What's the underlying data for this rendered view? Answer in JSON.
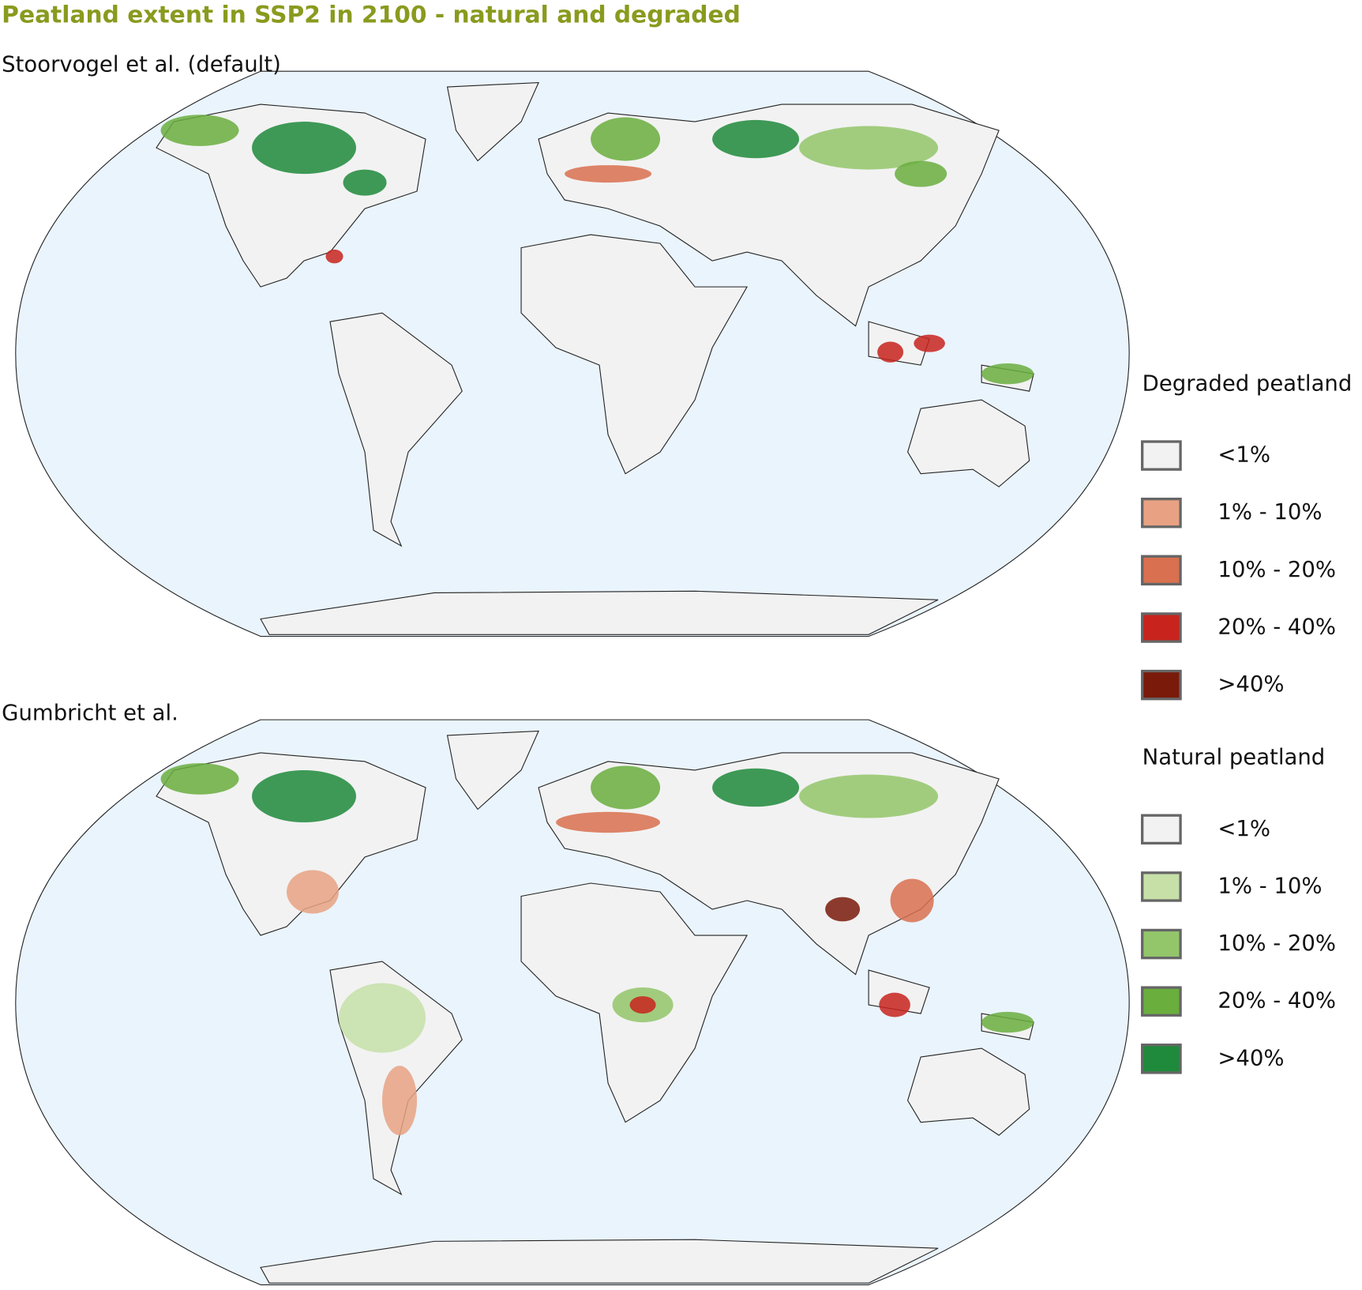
{
  "title": "Peatland extent in SSP2 in 2100 - natural and degraded",
  "maps": [
    {
      "subtitle": "Stoorvogel et al. (default)"
    },
    {
      "subtitle": "Gumbricht et al."
    }
  ],
  "legends": [
    {
      "title": "Degraded peatland",
      "items": [
        {
          "label": "<1%",
          "color": "#f2f2f2"
        },
        {
          "label": "1% - 10%",
          "color": "#e8a283"
        },
        {
          "label": "10% - 20%",
          "color": "#d9704f"
        },
        {
          "label": "20% - 40%",
          "color": "#c8231d"
        },
        {
          "label": ">40%",
          "color": "#7a1a0a"
        }
      ]
    },
    {
      "title": "Natural peatland",
      "items": [
        {
          "label": "<1%",
          "color": "#f2f2f2"
        },
        {
          "label": "1% - 10%",
          "color": "#c6e0a8"
        },
        {
          "label": "10% - 20%",
          "color": "#93c66a"
        },
        {
          "label": "20% - 40%",
          "color": "#6aae3e"
        },
        {
          "label": ">40%",
          "color": "#1f8a3b"
        }
      ]
    }
  ]
}
